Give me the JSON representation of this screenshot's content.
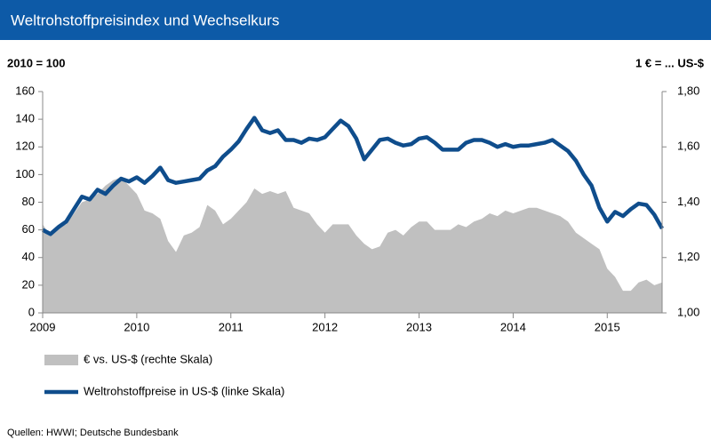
{
  "chart_data": {
    "type": "line",
    "title": "Weltrohstoffpreisindex  und Wechselkurs",
    "left_axis_label": "2010 = 100",
    "right_axis_label": "1 € = ... US-$",
    "source": "Quellen: HWWI; Deutsche Bundesbank",
    "x": [
      2009,
      2009.083,
      2009.167,
      2009.25,
      2009.333,
      2009.417,
      2009.5,
      2009.583,
      2009.667,
      2009.75,
      2009.833,
      2009.917,
      2010,
      2010.083,
      2010.167,
      2010.25,
      2010.333,
      2010.417,
      2010.5,
      2010.583,
      2010.667,
      2010.75,
      2010.833,
      2010.917,
      2011,
      2011.083,
      2011.167,
      2011.25,
      2011.333,
      2011.417,
      2011.5,
      2011.583,
      2011.667,
      2011.75,
      2011.833,
      2011.917,
      2012,
      2012.083,
      2012.167,
      2012.25,
      2012.333,
      2012.417,
      2012.5,
      2012.583,
      2012.667,
      2012.75,
      2012.833,
      2012.917,
      2013,
      2013.083,
      2013.167,
      2013.25,
      2013.333,
      2013.417,
      2013.5,
      2013.583,
      2013.667,
      2013.75,
      2013.833,
      2013.917,
      2014,
      2014.083,
      2014.167,
      2014.25,
      2014.333,
      2014.417,
      2014.5,
      2014.583,
      2014.667,
      2014.75,
      2014.833,
      2014.917,
      2015,
      2015.083,
      2015.167,
      2015.25,
      2015.333,
      2015.417,
      2015.5,
      2015.583
    ],
    "series": [
      {
        "name": "€ vs. US-$ (rechte Skala)",
        "color": "#c0c0c0",
        "axis": "y2",
        "type": "area",
        "values": [
          1.32,
          1.28,
          1.31,
          1.32,
          1.36,
          1.4,
          1.41,
          1.43,
          1.46,
          1.48,
          1.49,
          1.46,
          1.43,
          1.37,
          1.36,
          1.34,
          1.26,
          1.22,
          1.28,
          1.29,
          1.31,
          1.39,
          1.37,
          1.32,
          1.34,
          1.37,
          1.4,
          1.45,
          1.43,
          1.44,
          1.43,
          1.44,
          1.38,
          1.37,
          1.36,
          1.32,
          1.29,
          1.32,
          1.32,
          1.32,
          1.28,
          1.25,
          1.23,
          1.24,
          1.29,
          1.3,
          1.28,
          1.31,
          1.33,
          1.33,
          1.3,
          1.3,
          1.3,
          1.32,
          1.31,
          1.33,
          1.34,
          1.36,
          1.35,
          1.37,
          1.36,
          1.37,
          1.38,
          1.38,
          1.37,
          1.36,
          1.35,
          1.33,
          1.29,
          1.27,
          1.25,
          1.23,
          1.16,
          1.13,
          1.08,
          1.08,
          1.11,
          1.12,
          1.1,
          1.11
        ]
      },
      {
        "name": "Weltrohstoffpreise in US-$ (linke Skala)",
        "color": "#0f4d8c",
        "axis": "y",
        "type": "line",
        "values": [
          60,
          57,
          62,
          66,
          75,
          84,
          82,
          89,
          86,
          92,
          97,
          95,
          98,
          94,
          99,
          105,
          96,
          94,
          95,
          96,
          97,
          103,
          106,
          113,
          118,
          124,
          133,
          141,
          132,
          130,
          132,
          125,
          125,
          123,
          126,
          125,
          127,
          133,
          139,
          135,
          126,
          111,
          118,
          125,
          126,
          123,
          121,
          122,
          126,
          127,
          123,
          118,
          118,
          118,
          123,
          125,
          125,
          123,
          120,
          122,
          120,
          121,
          121,
          122,
          123,
          125,
          121,
          117,
          110,
          100,
          92,
          76,
          66,
          73,
          70,
          75,
          79,
          78,
          71,
          61
        ]
      }
    ],
    "xlim": [
      2009,
      2015.583
    ],
    "xticks": [
      2009,
      2010,
      2011,
      2012,
      2013,
      2014,
      2015
    ],
    "ylim": [
      0,
      160
    ],
    "yticks": [
      0,
      20,
      40,
      60,
      80,
      100,
      120,
      140,
      160
    ],
    "y2lim": [
      1.0,
      1.8
    ],
    "y2ticks": [
      {
        "value": 1.0,
        "label": "1,00"
      },
      {
        "value": 1.2,
        "label": "1,20"
      },
      {
        "value": 1.4,
        "label": "1,40"
      },
      {
        "value": 1.6,
        "label": "1,60"
      },
      {
        "value": 1.8,
        "label": "1,80"
      }
    ],
    "grid": false
  }
}
